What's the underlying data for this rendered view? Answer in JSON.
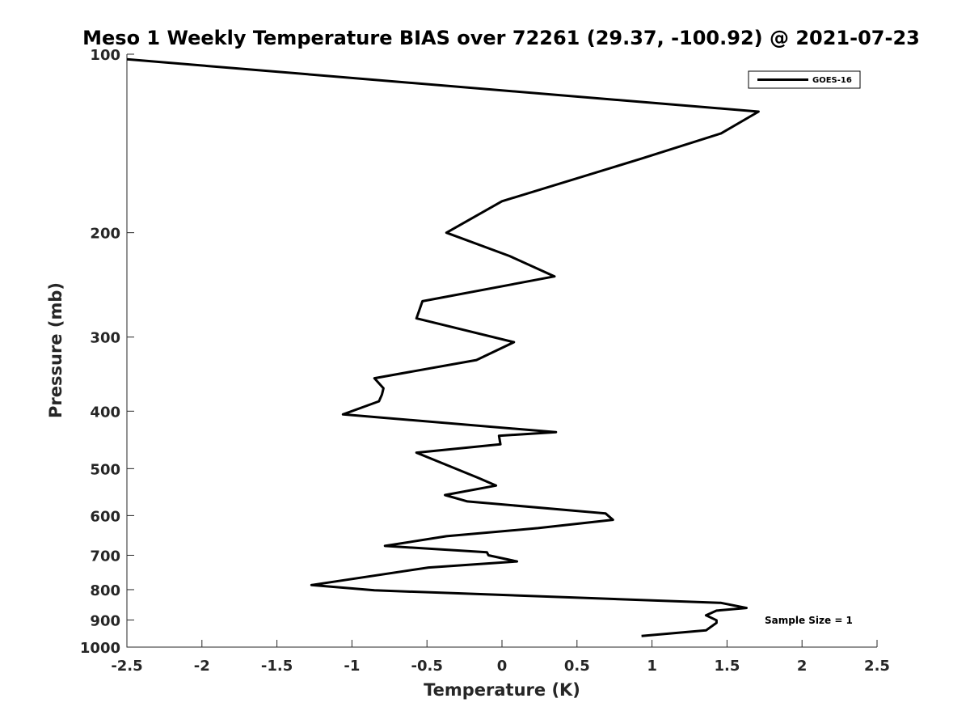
{
  "chart_data": {
    "type": "line",
    "title": "Meso 1 Weekly Temperature BIAS over 72261 (29.37, -100.92) @ 2021-07-23",
    "xlabel": "Temperature (K)",
    "ylabel": "Pressure (mb)",
    "xlim": [
      -2.5,
      2.5
    ],
    "ylim": [
      100,
      1000
    ],
    "y_scale": "log",
    "y_reversed": true,
    "x_ticks": [
      "-2.5",
      "-2",
      "-1.5",
      "-1",
      "-0.5",
      "0",
      "0.5",
      "1",
      "1.5",
      "2",
      "2.5"
    ],
    "y_ticks": [
      "100",
      "200",
      "300",
      "400",
      "500",
      "600",
      "700",
      "800",
      "900",
      "1000"
    ],
    "grid": false,
    "legend_position": "top-right",
    "series": [
      {
        "name": "GOES-16",
        "color": "#000000",
        "x": [
          -2.5,
          1.71,
          1.46,
          0.93,
          0.0,
          -0.37,
          0.05,
          0.35,
          -0.53,
          -0.57,
          0.08,
          -0.17,
          -0.85,
          -0.79,
          -0.8,
          -0.82,
          -1.06,
          0.36,
          -0.02,
          -0.01,
          -0.57,
          -0.16,
          -0.04,
          -0.38,
          -0.23,
          0.69,
          0.74,
          0.24,
          -0.37,
          -0.78,
          -0.1,
          -0.09,
          0.1,
          -0.49,
          -1.27,
          -0.85,
          1.46,
          1.63,
          1.43,
          1.36,
          1.43,
          1.43,
          1.36,
          0.93
        ],
        "y": [
          102,
          125,
          136,
          150,
          177,
          200,
          219,
          237,
          261,
          279,
          306,
          328,
          352,
          366,
          375,
          385,
          405,
          434,
          440,
          455,
          470,
          518,
          534,
          554,
          568,
          595,
          610,
          630,
          650,
          675,
          692,
          700,
          717,
          734,
          786,
          802,
          842,
          859,
          868,
          884,
          901,
          910,
          937,
          958
        ]
      }
    ],
    "annotations": [
      "Sample Size = 1"
    ]
  }
}
